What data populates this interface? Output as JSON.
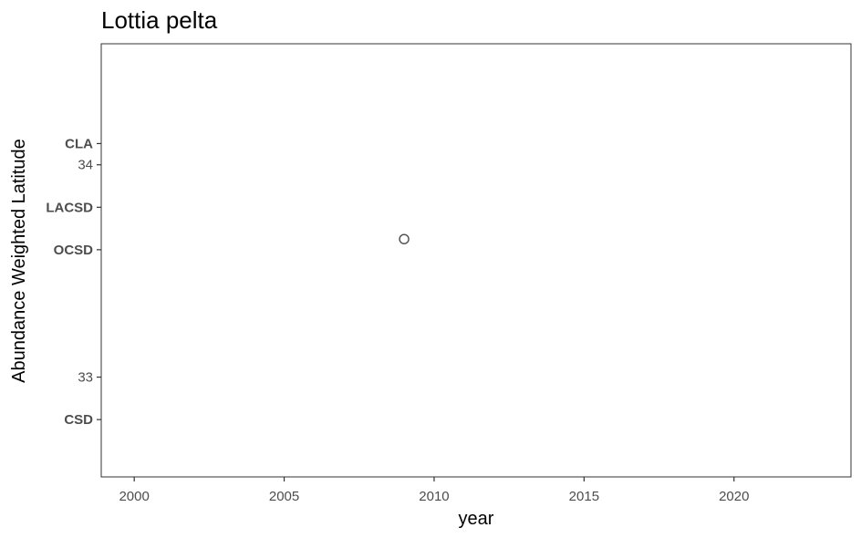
{
  "chart_data": {
    "type": "scatter",
    "title": "Lottia pelta",
    "xlabel": "year",
    "ylabel": "Abundance Weighted Latitude",
    "xlim": [
      1998.9,
      2023.9
    ],
    "ylim": [
      32.53,
      34.57
    ],
    "x_ticks": [
      2000,
      2005,
      2010,
      2015,
      2020
    ],
    "y_ticks": [
      33,
      34
    ],
    "y_reference_labels": [
      {
        "label": "CLA",
        "y": 34.1
      },
      {
        "label": "LACSD",
        "y": 33.8
      },
      {
        "label": "OCSD",
        "y": 33.6
      },
      {
        "label": "CSD",
        "y": 32.8
      }
    ],
    "points": [
      {
        "x": 2009,
        "y": 33.65
      }
    ],
    "grid": false,
    "colors": {
      "point_stroke": "#4d4d4d",
      "panel_border": "#333333",
      "tick": "#333333"
    }
  }
}
